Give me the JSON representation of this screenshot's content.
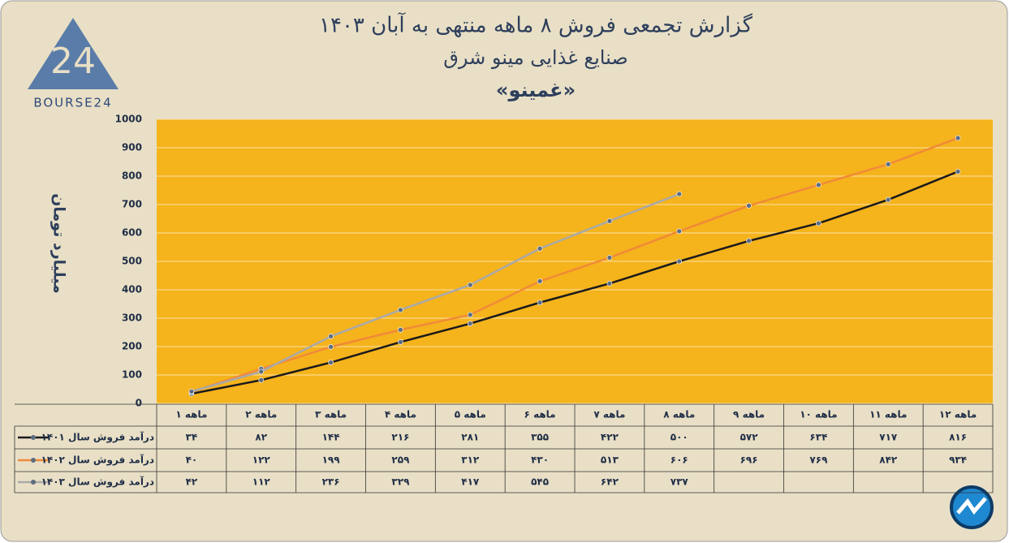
{
  "logo_text": "BOURSE24",
  "chart_data": {
    "type": "line",
    "title": "گزارش تجمعی فروش ۸ ماهه منتهی به آبان ۱۴۰۳",
    "subtitle": "صنایع غذایی مینو شرق",
    "subtitle2": "«غمینو»",
    "y_label": "میلیارد تومان",
    "categories": [
      "۱ ماهه",
      "۲ ماهه",
      "۳ ماهه",
      "۴ ماهه",
      "۵ ماهه",
      "۶ ماهه",
      "۷ ماهه",
      "۸ ماهه",
      "۹ ماهه",
      "۱۰ ماهه",
      "۱۱ ماهه",
      "۱۲ ماهه"
    ],
    "ylim": [
      0,
      1000
    ],
    "yticks": [
      0,
      100,
      200,
      300,
      400,
      500,
      600,
      700,
      800,
      900,
      1000
    ],
    "grid": true,
    "background": "#f5b31c",
    "series": [
      {
        "name": "درآمد فروش سال ۱۴۰۱",
        "color": "#1a1a1a",
        "values": [
          34,
          82,
          144,
          216,
          281,
          355,
          422,
          500,
          572,
          634,
          717,
          816
        ],
        "value_labels": [
          "۳۴",
          "۸۲",
          "۱۴۴",
          "۲۱۶",
          "۲۸۱",
          "۳۵۵",
          "۴۲۲",
          "۵۰۰",
          "۵۷۲",
          "۶۳۴",
          "۷۱۷",
          "۸۱۶"
        ]
      },
      {
        "name": "درآمد فروش سال ۱۴۰۲",
        "color": "#f08a38",
        "values": [
          40,
          122,
          199,
          259,
          312,
          430,
          513,
          606,
          696,
          769,
          842,
          934
        ],
        "value_labels": [
          "۴۰",
          "۱۲۲",
          "۱۹۹",
          "۲۵۹",
          "۳۱۲",
          "۴۳۰",
          "۵۱۳",
          "۶۰۶",
          "۶۹۶",
          "۷۶۹",
          "۸۴۲",
          "۹۳۴"
        ]
      },
      {
        "name": "درآمد فروش سال ۱۴۰۳",
        "color": "#a9a9a9",
        "values": [
          42,
          112,
          236,
          329,
          417,
          545,
          642,
          737,
          null,
          null,
          null,
          null
        ],
        "value_labels": [
          "۴۲",
          "۱۱۲",
          "۲۳۶",
          "۳۲۹",
          "۴۱۷",
          "۵۴۵",
          "۶۴۲",
          "۷۳۷",
          null,
          null,
          null,
          null
        ]
      }
    ]
  }
}
